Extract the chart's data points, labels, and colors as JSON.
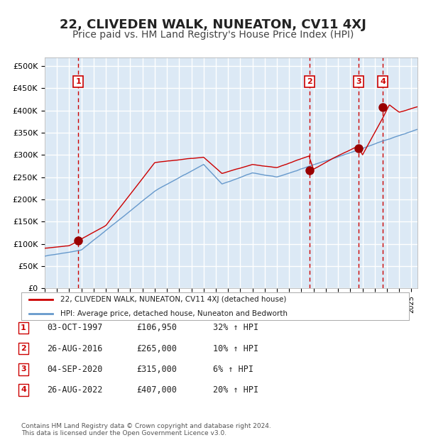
{
  "title": "22, CLIVEDEN WALK, NUNEATON, CV11 4XJ",
  "subtitle": "Price paid vs. HM Land Registry's House Price Index (HPI)",
  "title_fontsize": 13,
  "subtitle_fontsize": 10,
  "plot_bg_color": "#dce9f5",
  "grid_color": "#ffffff",
  "ylim": [
    0,
    520000
  ],
  "xlim_start": 1995.0,
  "xlim_end": 2025.5,
  "ylabel_ticks": [
    0,
    50000,
    100000,
    150000,
    200000,
    250000,
    300000,
    350000,
    400000,
    450000,
    500000
  ],
  "ylabel_labels": [
    "£0",
    "£50K",
    "£100K",
    "£150K",
    "£200K",
    "£250K",
    "£300K",
    "£350K",
    "£400K",
    "£450K",
    "£500K"
  ],
  "sale_dates": [
    1997.75,
    2016.65,
    2020.67,
    2022.65
  ],
  "sale_prices": [
    106950,
    265000,
    315000,
    407000
  ],
  "sale_labels": [
    "1",
    "2",
    "3",
    "4"
  ],
  "red_line_color": "#cc0000",
  "blue_line_color": "#6699cc",
  "marker_color": "#990000",
  "dashed_line_color": "#cc0000",
  "legend_red_label": "22, CLIVEDEN WALK, NUNEATON, CV11 4XJ (detached house)",
  "legend_blue_label": "HPI: Average price, detached house, Nuneaton and Bedworth",
  "table_rows": [
    {
      "num": "1",
      "date": "03-OCT-1997",
      "price": "£106,950",
      "change": "32% ↑ HPI"
    },
    {
      "num": "2",
      "date": "26-AUG-2016",
      "price": "£265,000",
      "change": "10% ↑ HPI"
    },
    {
      "num": "3",
      "date": "04-SEP-2020",
      "price": "£315,000",
      "change": "6% ↑ HPI"
    },
    {
      "num": "4",
      "date": "26-AUG-2022",
      "price": "£407,000",
      "change": "20% ↑ HPI"
    }
  ],
  "footer": "Contains HM Land Registry data © Crown copyright and database right 2024.\nThis data is licensed under the Open Government Licence v3.0."
}
